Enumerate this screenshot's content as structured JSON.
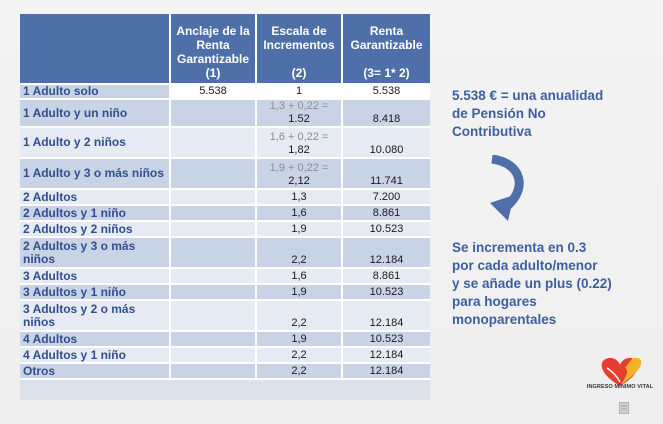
{
  "table": {
    "headers": [
      [],
      [
        "Anclaje de la",
        "Renta",
        "Garantizable",
        "(1)"
      ],
      [
        "Escala de",
        "Incrementos",
        "",
        "(2)"
      ],
      [
        "Renta",
        "Garantizable",
        "",
        "(3= 1* 2)"
      ]
    ],
    "rows": [
      {
        "label": "1 Adulto solo",
        "anchor": "5.538",
        "calc": "",
        "scale": "1",
        "income": "5.538"
      },
      {
        "label": "1 Adulto y un niño",
        "anchor": "",
        "calc": "1,3 + 0,22 =",
        "scale": "1.52",
        "income": "8.418"
      },
      {
        "label": "1 Adulto y 2 niños",
        "anchor": "",
        "calc": "1,6 + 0,22 =",
        "scale": "1,82",
        "income": "10.080"
      },
      {
        "label": "1 Adulto y 3 o más niños",
        "anchor": "",
        "calc": "1,9 + 0,22 =",
        "scale": "2,12",
        "income": "11.741"
      },
      {
        "label": "2 Adultos",
        "anchor": "",
        "calc": "",
        "scale": "1,3",
        "income": "7.200"
      },
      {
        "label": "2 Adultos y 1 niño",
        "anchor": "",
        "calc": "",
        "scale": "1,6",
        "income": "8.861"
      },
      {
        "label": "2 Adultos y 2 niños",
        "anchor": "",
        "calc": "",
        "scale": "1,9",
        "income": "10.523"
      },
      {
        "label": "2 Adultos y 3 o más niños",
        "anchor": "",
        "calc": "",
        "scale": "2,2",
        "income": "12.184"
      },
      {
        "label": "3 Adultos",
        "anchor": "",
        "calc": "",
        "scale": "1,6",
        "income": "8.861"
      },
      {
        "label": "3 Adultos y 1 niño",
        "anchor": "",
        "calc": "",
        "scale": "1,9",
        "income": "10.523"
      },
      {
        "label": "3 Adultos y 2  o más niños",
        "anchor": "",
        "calc": "",
        "scale": "2,2",
        "income": "12.184"
      },
      {
        "label": "4 Adultos",
        "anchor": "",
        "calc": "",
        "scale": "1,9",
        "income": "10.523"
      },
      {
        "label": "4 Adultos y 1 niño",
        "anchor": "",
        "calc": "",
        "scale": "2,2",
        "income": "12.184"
      },
      {
        "label": "Otros",
        "anchor": "",
        "calc": "",
        "scale": "2,2",
        "income": "12.184"
      }
    ]
  },
  "notes": {
    "annuity": [
      "5.538 € = una anualidad",
      "de Pensión No",
      "Contributiva"
    ],
    "increment": [
      "Se incrementa en 0.3",
      "por cada adulto/menor",
      "y se añade un plus (0.22)",
      "para hogares",
      "monoparentales"
    ]
  },
  "logo": {
    "text": "INGRESO MÍNIMO VITAL",
    "icon": "heart-hands-icon"
  },
  "colors": {
    "header": "#4f6fa8",
    "row_dark": "#c9d3e6",
    "row_light": "#e6eaf2",
    "label_text": "#2f4f8f",
    "note_text": "#3d5fa0",
    "arrow": "#4f6fa8"
  }
}
